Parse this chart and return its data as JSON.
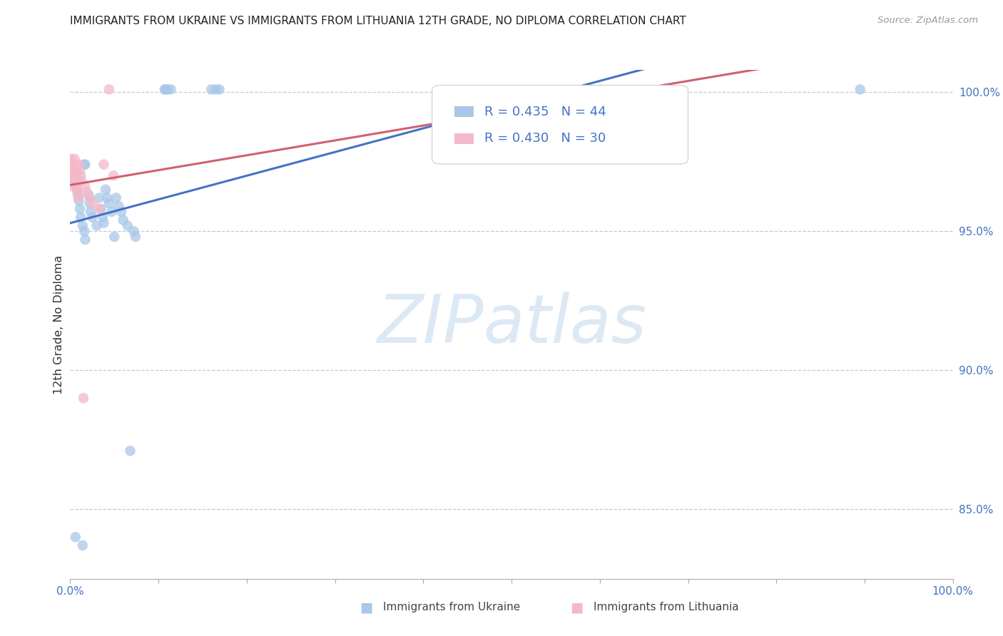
{
  "title": "IMMIGRANTS FROM UKRAINE VS IMMIGRANTS FROM LITHUANIA 12TH GRADE, NO DIPLOMA CORRELATION CHART",
  "source": "Source: ZipAtlas.com",
  "ylabel": "12th Grade, No Diploma",
  "xlim": [
    0.0,
    1.0
  ],
  "ylim": [
    0.825,
    1.008
  ],
  "xtick_positions": [
    0.0,
    0.1,
    0.2,
    0.3,
    0.4,
    0.5,
    0.6,
    0.7,
    0.8,
    0.9,
    1.0
  ],
  "xticklabels": [
    "0.0%",
    "",
    "",
    "",
    "",
    "",
    "",
    "",
    "",
    "",
    "100.0%"
  ],
  "ytick_positions": [
    0.85,
    0.9,
    0.95,
    1.0
  ],
  "yticklabels": [
    "85.0%",
    "90.0%",
    "95.0%",
    "100.0%"
  ],
  "ukraine_R": 0.435,
  "ukraine_N": 44,
  "lithuania_R": 0.43,
  "lithuania_N": 30,
  "ukraine_color": "#a8c8e8",
  "lithuania_color": "#f5b8c8",
  "ukraine_line_color": "#4472c4",
  "lithuania_line_color": "#d06070",
  "watermark_text": "ZIPatlas",
  "watermark_color": "#dce9f5",
  "background_color": "#ffffff",
  "grid_color": "#c8c8c8",
  "title_color": "#222222",
  "source_color": "#999999",
  "tick_label_color": "#4472c4",
  "ylabel_color": "#333333",
  "legend_text_color": "#4472c4",
  "ukraine_x": [
    0.006,
    0.014,
    0.016,
    0.017,
    0.007,
    0.008,
    0.008,
    0.009,
    0.01,
    0.011,
    0.012,
    0.014,
    0.016,
    0.017,
    0.021,
    0.022,
    0.023,
    0.025,
    0.03,
    0.033,
    0.035,
    0.037,
    0.038,
    0.04,
    0.042,
    0.044,
    0.047,
    0.05,
    0.052,
    0.055,
    0.058,
    0.06,
    0.065,
    0.068,
    0.072,
    0.074,
    0.107,
    0.108,
    0.11,
    0.114,
    0.16,
    0.165,
    0.169,
    0.895
  ],
  "ukraine_y": [
    0.84,
    0.837,
    0.974,
    0.974,
    0.971,
    0.968,
    0.965,
    0.963,
    0.961,
    0.958,
    0.955,
    0.952,
    0.95,
    0.947,
    0.963,
    0.96,
    0.957,
    0.955,
    0.952,
    0.962,
    0.958,
    0.955,
    0.953,
    0.965,
    0.962,
    0.96,
    0.957,
    0.948,
    0.962,
    0.959,
    0.957,
    0.954,
    0.952,
    0.871,
    0.95,
    0.948,
    1.001,
    1.001,
    1.001,
    1.001,
    1.001,
    1.001,
    1.001,
    1.001
  ],
  "lithuania_x": [
    0.001,
    0.001,
    0.001,
    0.002,
    0.002,
    0.003,
    0.003,
    0.004,
    0.004,
    0.005,
    0.005,
    0.006,
    0.006,
    0.007,
    0.007,
    0.008,
    0.009,
    0.01,
    0.011,
    0.012,
    0.013,
    0.015,
    0.017,
    0.019,
    0.022,
    0.026,
    0.033,
    0.038,
    0.044,
    0.049
  ],
  "lithuania_y": [
    0.976,
    0.974,
    0.972,
    0.971,
    0.969,
    0.972,
    0.97,
    0.968,
    0.966,
    0.976,
    0.974,
    0.972,
    0.97,
    0.968,
    0.966,
    0.964,
    0.962,
    0.974,
    0.972,
    0.97,
    0.968,
    0.89,
    0.966,
    0.964,
    0.962,
    0.96,
    0.958,
    0.974,
    1.001,
    0.97
  ]
}
